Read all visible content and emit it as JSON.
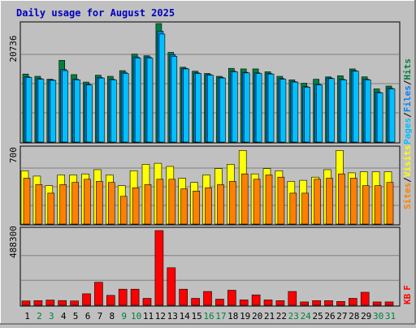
{
  "title": "Daily usage for August 2025",
  "colors": {
    "background": "#C0C0C0",
    "title": "#0000C0",
    "hits": "#008040",
    "files": "#0080FF",
    "pages": "#00C0FF",
    "visits": "#FFFF00",
    "sites": "#FF8000",
    "kbytes": "#FF0000",
    "weekend_label": "#008040",
    "weekday_label": "#000000"
  },
  "chart_data": [
    {
      "type": "bar",
      "panel": "hits-files-pages",
      "max_label": "20736",
      "ylim": [
        0,
        20736
      ],
      "legend": [
        "Pages",
        "Files",
        "Hits"
      ],
      "legend_separator": "/",
      "categories": [
        "1",
        "2",
        "3",
        "4",
        "5",
        "6",
        "7",
        "8",
        "9",
        "10",
        "11",
        "12",
        "13",
        "14",
        "15",
        "16",
        "17",
        "18",
        "19",
        "20",
        "21",
        "22",
        "23",
        "24",
        "25",
        "26",
        "27",
        "28",
        "29",
        "30",
        "31"
      ],
      "weekend_days": [
        2,
        3,
        9,
        10,
        16,
        17,
        23,
        24,
        30,
        31
      ],
      "series": [
        {
          "name": "Hits",
          "values": [
            11900,
            11500,
            11000,
            14300,
            11800,
            10500,
            11700,
            11500,
            12500,
            15400,
            15100,
            20736,
            15700,
            13100,
            12400,
            12000,
            11500,
            12900,
            12800,
            12800,
            12300,
            11500,
            10900,
            10300,
            11000,
            11400,
            11600,
            12800,
            11400,
            9300,
            9800
          ]
        },
        {
          "name": "Files",
          "values": [
            11400,
            11100,
            10900,
            12700,
            11000,
            10100,
            11300,
            11000,
            12200,
            14900,
            14900,
            19400,
            15300,
            12900,
            12100,
            11800,
            11300,
            12400,
            12200,
            12100,
            12000,
            11100,
            10600,
            9700,
            10100,
            11200,
            11000,
            12500,
            11000,
            8700,
            9400
          ]
        },
        {
          "name": "Pages",
          "values": [
            11300,
            11000,
            10800,
            12500,
            10900,
            10000,
            11200,
            10900,
            12000,
            14700,
            14700,
            18900,
            15000,
            12800,
            12000,
            11700,
            11200,
            12300,
            12100,
            12000,
            11900,
            11000,
            10500,
            9600,
            10000,
            11100,
            10900,
            12400,
            10900,
            8600,
            9300
          ]
        }
      ]
    },
    {
      "type": "bar",
      "panel": "visits-sites",
      "max_label": "700",
      "ylim": [
        0,
        700
      ],
      "legend": [
        "Sites",
        "Visits"
      ],
      "legend_separator": "/",
      "categories": [
        "1",
        "2",
        "3",
        "4",
        "5",
        "6",
        "7",
        "8",
        "9",
        "10",
        "11",
        "12",
        "13",
        "14",
        "15",
        "16",
        "17",
        "18",
        "19",
        "20",
        "21",
        "22",
        "23",
        "24",
        "25",
        "26",
        "27",
        "28",
        "29",
        "30",
        "31"
      ],
      "series": [
        {
          "name": "Visits",
          "values": [
            500,
            450,
            360,
            460,
            460,
            470,
            510,
            460,
            360,
            500,
            560,
            570,
            540,
            430,
            390,
            460,
            520,
            560,
            690,
            470,
            520,
            500,
            400,
            410,
            440,
            510,
            690,
            480,
            490,
            490,
            490
          ]
        },
        {
          "name": "Sites",
          "values": [
            430,
            370,
            290,
            370,
            390,
            420,
            400,
            390,
            260,
            340,
            370,
            420,
            420,
            330,
            310,
            340,
            370,
            400,
            470,
            420,
            460,
            440,
            290,
            290,
            420,
            430,
            470,
            430,
            360,
            360,
            390
          ]
        }
      ]
    },
    {
      "type": "bar",
      "panel": "kbytes",
      "max_label": "488300",
      "ylim": [
        0,
        488300
      ],
      "legend": [
        "KB",
        "F"
      ],
      "categories": [
        "1",
        "2",
        "3",
        "4",
        "5",
        "6",
        "7",
        "8",
        "9",
        "10",
        "11",
        "12",
        "13",
        "14",
        "15",
        "16",
        "17",
        "18",
        "19",
        "20",
        "21",
        "22",
        "23",
        "24",
        "25",
        "26",
        "27",
        "28",
        "29",
        "30",
        "31"
      ],
      "series": [
        {
          "name": "KB F",
          "values": [
            28000,
            30000,
            34000,
            31000,
            28000,
            75000,
            150000,
            65000,
            105000,
            105000,
            45000,
            488300,
            245000,
            105000,
            45000,
            90000,
            40000,
            98000,
            35000,
            68000,
            35000,
            30000,
            90000,
            22000,
            30000,
            30000,
            25000,
            45000,
            85000,
            22000,
            22000
          ]
        }
      ]
    }
  ]
}
